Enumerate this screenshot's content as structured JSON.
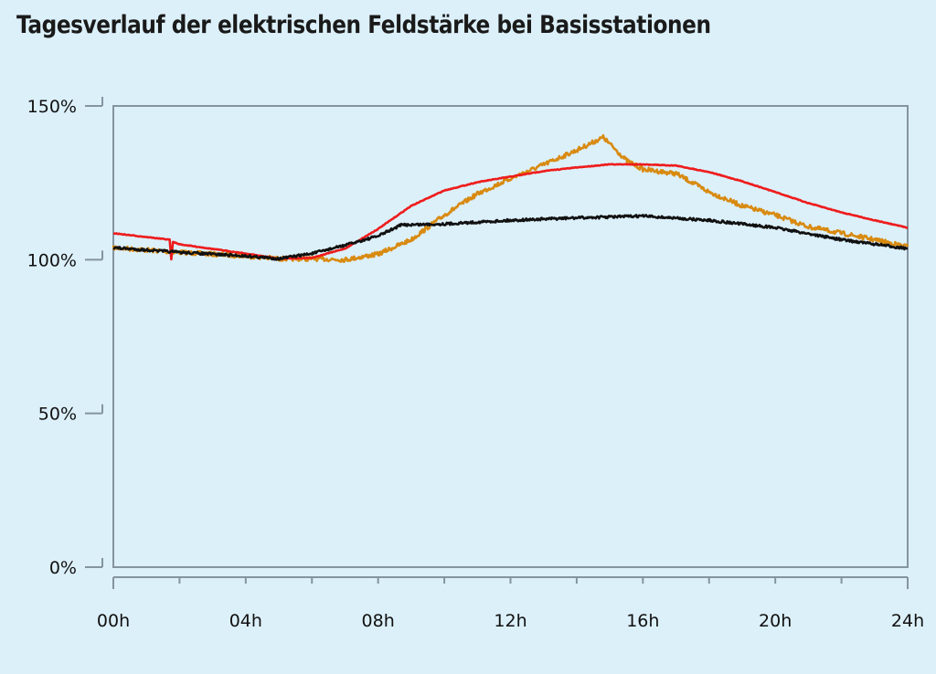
{
  "chart_data": {
    "type": "line",
    "title": "Tagesverlauf der elektrischen Feldstärke bei Basisstationen",
    "xlabel": "",
    "ylabel": "",
    "xlim": [
      0,
      24
    ],
    "ylim": [
      0,
      150
    ],
    "grid": false,
    "x_ticks": [
      0,
      4,
      8,
      12,
      16,
      20,
      24
    ],
    "x_tick_labels": [
      "00h",
      "04h",
      "08h",
      "12h",
      "16h",
      "20h",
      "24h"
    ],
    "x_minor_ticks_every_hours": 2,
    "y_ticks": [
      0,
      50,
      100,
      150
    ],
    "y_tick_labels": [
      "0%",
      "50%",
      "100%",
      "150%"
    ],
    "series": [
      {
        "name": "orange",
        "color": "#d88a10",
        "x": [
          0,
          2,
          4,
          5,
          6,
          7,
          8,
          9,
          10,
          11,
          12,
          13,
          14,
          14.8,
          15.5,
          16,
          17,
          18,
          19,
          20,
          21,
          22,
          23,
          24
        ],
        "y": [
          103.9,
          102.4,
          101.2,
          100.3,
          100.3,
          100,
          101.8,
          106.5,
          114.5,
          121.4,
          126.4,
          130.9,
          135.6,
          139.8,
          132.3,
          129.4,
          128,
          122,
          117.5,
          114.5,
          110.7,
          108.6,
          106.5,
          104.2
        ]
      },
      {
        "name": "red",
        "color": "#ee1c1c",
        "x": [
          0,
          1.7,
          1.75,
          1.8,
          2,
          4,
          5,
          6,
          7,
          8,
          9,
          10,
          11,
          12,
          13,
          14,
          15,
          16,
          17,
          18,
          19,
          20,
          21,
          22,
          23,
          24
        ],
        "y": [
          108.6,
          106.5,
          100,
          105.8,
          105,
          102,
          100.3,
          100.6,
          103.6,
          110,
          117.5,
          122.5,
          125.2,
          127,
          128.8,
          130,
          131,
          131,
          130.6,
          128.5,
          125.5,
          122,
          118.4,
          115.4,
          112.8,
          110.4
        ]
      },
      {
        "name": "black",
        "color": "#111111",
        "x": [
          0,
          2,
          4,
          5,
          6,
          7,
          8,
          8.7,
          10,
          12,
          14,
          16,
          18,
          20,
          22,
          24
        ],
        "y": [
          103.9,
          102.4,
          101.2,
          100.3,
          102,
          104.7,
          107.7,
          111.3,
          111.6,
          112.8,
          113.6,
          114.2,
          112.8,
          110.4,
          106.5,
          103.6
        ]
      }
    ]
  }
}
